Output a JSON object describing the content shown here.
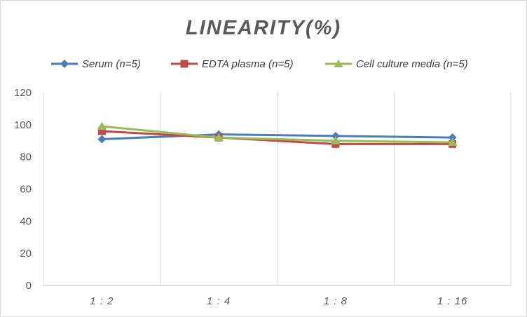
{
  "chart_data": {
    "type": "line",
    "title": "LINEARITY(%)",
    "categories": [
      "1:2",
      "1:4",
      "1:8",
      "1:16"
    ],
    "series": [
      {
        "name": "Serum (n=5)",
        "color": "#4a7ebb",
        "marker": "diamond",
        "values": [
          91,
          94,
          93,
          92
        ]
      },
      {
        "name": "EDTA plasma (n=5)",
        "color": "#be4b48",
        "marker": "square",
        "values": [
          96,
          92,
          88,
          88
        ]
      },
      {
        "name": "Cell culture media (n=5)",
        "color": "#9bbb59",
        "marker": "triangle",
        "values": [
          99,
          92,
          90,
          89
        ]
      }
    ],
    "ylim": [
      0,
      120
    ],
    "yticks": [
      "0",
      "20",
      "40",
      "60",
      "80",
      "100",
      "120"
    ],
    "xtick_labels": [
      "1 : 2",
      "1 : 4",
      "1 : 8",
      "1 : 16"
    ],
    "grid": "vertical",
    "legend": "top"
  }
}
